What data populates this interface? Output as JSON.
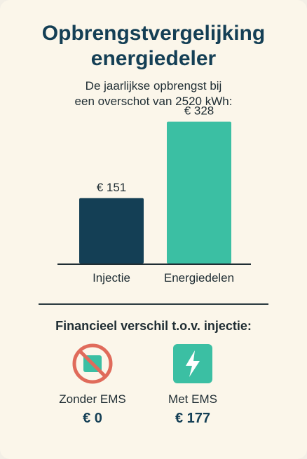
{
  "title_line1": "Opbrengstvergelijking",
  "title_line2": "energiedeler",
  "subtitle_line1": "De jaarlijkse opbrengst bij",
  "subtitle_line2": "een overschot van 2520 kWh:",
  "chart_data": {
    "type": "bar",
    "categories": [
      "Injectie",
      "Energiedelen"
    ],
    "values": [
      151,
      328
    ],
    "value_labels": [
      "€ 151",
      "€ 328"
    ],
    "colors": [
      "#143f55",
      "#3bbfa3"
    ],
    "ylim": [
      0,
      350
    ],
    "grid": false
  },
  "comparison": {
    "heading": "Financieel verschil t.o.v. injectie:",
    "items": [
      {
        "label": "Zonder EMS",
        "value": "€ 0",
        "icon": "prohibited-battery-icon",
        "color": "#e06b5b"
      },
      {
        "label": "Met EMS",
        "value": "€ 177",
        "icon": "lightning-icon",
        "color": "#3bbfa3"
      }
    ]
  }
}
